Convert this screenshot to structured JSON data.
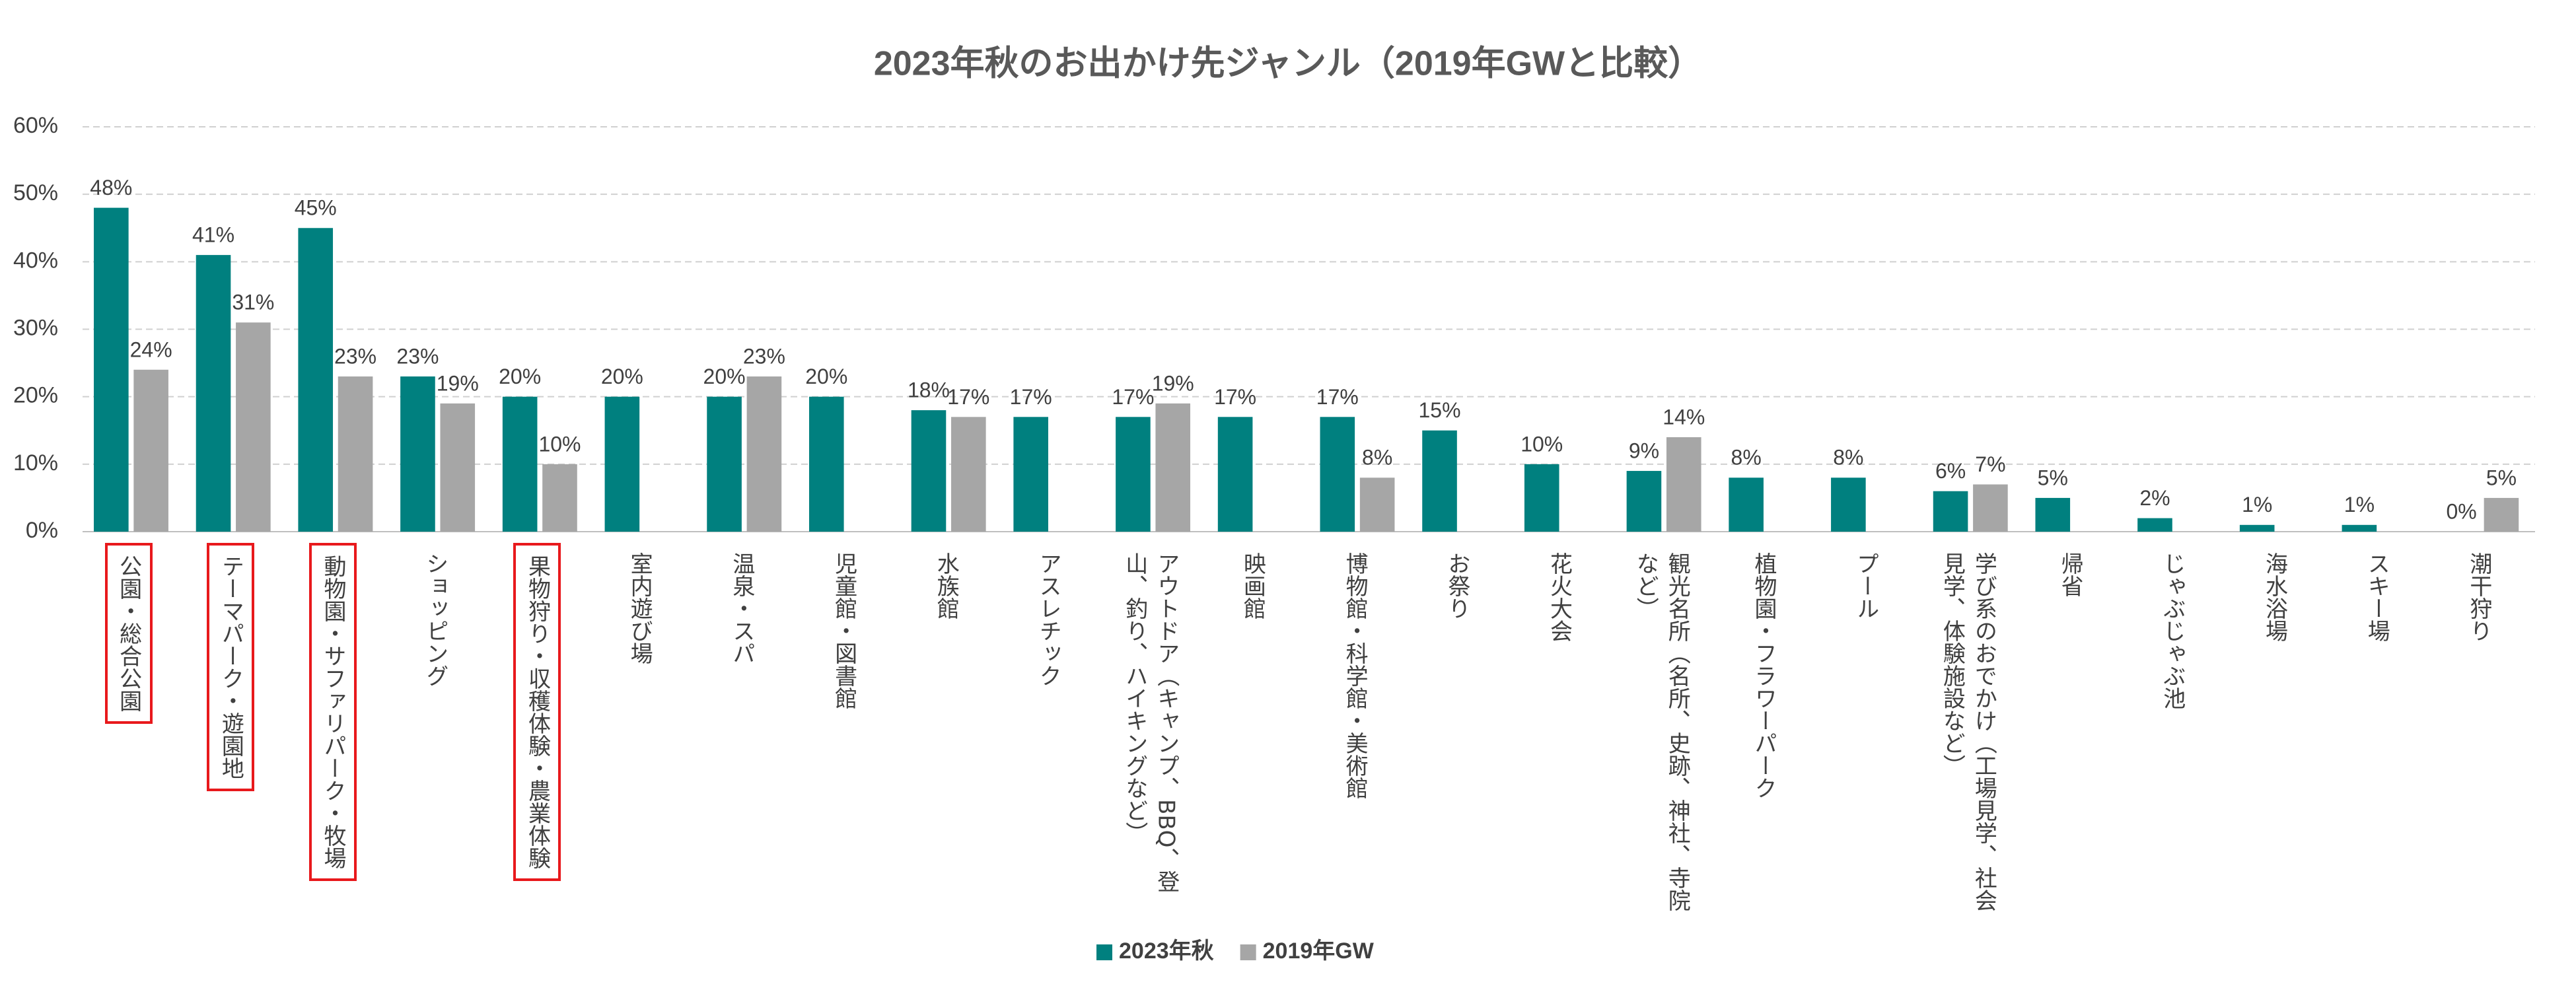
{
  "chart_data": {
    "type": "bar",
    "title": "2023年秋のお出かけ先ジャンル（2019年GWと比較）",
    "categories": [
      "公園・総合公園",
      "テーマパーク・遊園地",
      "動物園・サファリパーク・牧場",
      "ショッピング",
      "果物狩り・収穫体験・農業体験",
      "室内遊び場",
      "温泉・スパ",
      "児童館・図書館",
      "水族館",
      "アスレチック",
      "アウトドア（キャンプ、BBQ、登山、釣り、ハイキングなど）",
      "映画館",
      "博物館・科学館・美術館",
      "お祭り",
      "花火大会",
      "観光名所（名所、史跡、神社、寺院など）",
      "植物園・フラワーパーク",
      "プール",
      "学び系のおでかけ（工場見学、社会見学、体験施設など）",
      "帰省",
      "じゃぶじゃぶ池",
      "海水浴場",
      "スキー場",
      "潮干狩り"
    ],
    "series": [
      {
        "name": "2023年秋",
        "color": "#00807f",
        "values": [
          48,
          41,
          45,
          23,
          20,
          20,
          20,
          20,
          18,
          17,
          17,
          17,
          17,
          15,
          10,
          9,
          8,
          8,
          6,
          5,
          2,
          1,
          1,
          0
        ],
        "value_labels": [
          "48%",
          "41%",
          "45%",
          "23%",
          "20%",
          "20%",
          "20%",
          "20%",
          "18%",
          "17%",
          "17%",
          "17%",
          "17%",
          "15%",
          "10%",
          "9%",
          "8%",
          "8%",
          "6%",
          "5%",
          "2%",
          "1%",
          "1%",
          "0%"
        ]
      },
      {
        "name": "2019年GW",
        "color": "#a6a6a6",
        "values": [
          24,
          31,
          23,
          19,
          10,
          null,
          23,
          null,
          17,
          null,
          19,
          null,
          8,
          null,
          null,
          14,
          null,
          null,
          7,
          null,
          null,
          null,
          null,
          5
        ],
        "value_labels": [
          "24%",
          "31%",
          "23%",
          "19%",
          "10%",
          null,
          "23%",
          null,
          "17%",
          null,
          "19%",
          null,
          "8%",
          null,
          null,
          "14%",
          null,
          null,
          "7%",
          null,
          null,
          null,
          null,
          "5%"
        ]
      }
    ],
    "ylim": [
      0,
      60
    ],
    "yticks": [
      {
        "value": 0,
        "label": "0%"
      },
      {
        "value": 10,
        "label": "10%"
      },
      {
        "value": 20,
        "label": "20%"
      },
      {
        "value": 30,
        "label": "30%"
      },
      {
        "value": 40,
        "label": "40%"
      },
      {
        "value": 50,
        "label": "50%"
      },
      {
        "value": 60,
        "label": "60%"
      }
    ],
    "grid": true,
    "legend": "bottom",
    "highlighted_categories": [
      0,
      1,
      2,
      4
    ],
    "highlight_color": "#e8191c"
  }
}
